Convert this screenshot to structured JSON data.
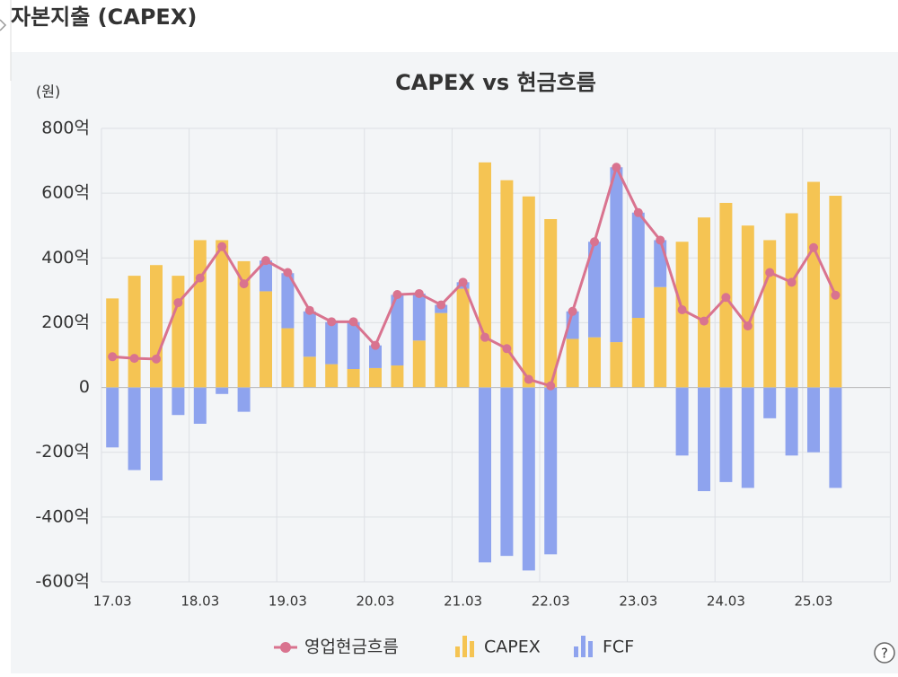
{
  "page_title": "자본지출 (CAPEX)",
  "chart_data": {
    "type": "bar_line",
    "title": "CAPEX vs 현금흐름",
    "y_unit_label": "(원)",
    "categories": [
      "17.03",
      null,
      null,
      null,
      "18.03",
      null,
      null,
      null,
      "19.03",
      null,
      null,
      null,
      "20.03",
      null,
      null,
      null,
      "21.03",
      null,
      null,
      null,
      "22.03",
      null,
      null,
      null,
      "23.03",
      null,
      null,
      null,
      "24.03",
      null,
      null,
      null,
      "25.03",
      null
    ],
    "series": [
      {
        "name": "영업현금흐름",
        "kind": "line",
        "color": "#d9738f",
        "values": [
          95,
          90,
          88,
          262,
          338,
          435,
          320,
          392,
          355,
          238,
          203,
          203,
          130,
          287,
          290,
          255,
          325,
          155,
          120,
          25,
          5,
          235,
          450,
          680,
          540,
          455,
          240,
          205,
          278,
          190,
          355,
          325,
          432,
          285
        ]
      },
      {
        "name": "CAPEX",
        "kind": "bar",
        "color": "#f5c453",
        "values": [
          275,
          345,
          378,
          345,
          455,
          455,
          390,
          297,
          183,
          95,
          72,
          57,
          60,
          68,
          145,
          230,
          305,
          695,
          640,
          590,
          520,
          150,
          155,
          140,
          215,
          310,
          450,
          525,
          570,
          500,
          455,
          538,
          635,
          592
        ]
      },
      {
        "name": "FCF",
        "kind": "bar",
        "color": "#8ea3ee",
        "values": [
          -185,
          -255,
          -287,
          -85,
          -112,
          -20,
          -75,
          95,
          170,
          140,
          130,
          145,
          70,
          218,
          145,
          25,
          20,
          -540,
          -520,
          -565,
          -515,
          85,
          295,
          540,
          325,
          145,
          -210,
          -320,
          -292,
          -310,
          -95,
          -210,
          -200,
          -310
        ]
      }
    ],
    "ylim": [
      -600,
      800
    ],
    "yticks": [
      {
        "value": -600,
        "label": "-600억"
      },
      {
        "value": -400,
        "label": "-400억"
      },
      {
        "value": -200,
        "label": "-200억"
      },
      0,
      {
        "value": 200,
        "label": "200억"
      },
      {
        "value": 400,
        "label": "400억"
      },
      {
        "value": 600,
        "label": "600억"
      },
      {
        "value": 800,
        "label": "800억"
      }
    ],
    "grid": true,
    "legend": "bottom"
  }
}
